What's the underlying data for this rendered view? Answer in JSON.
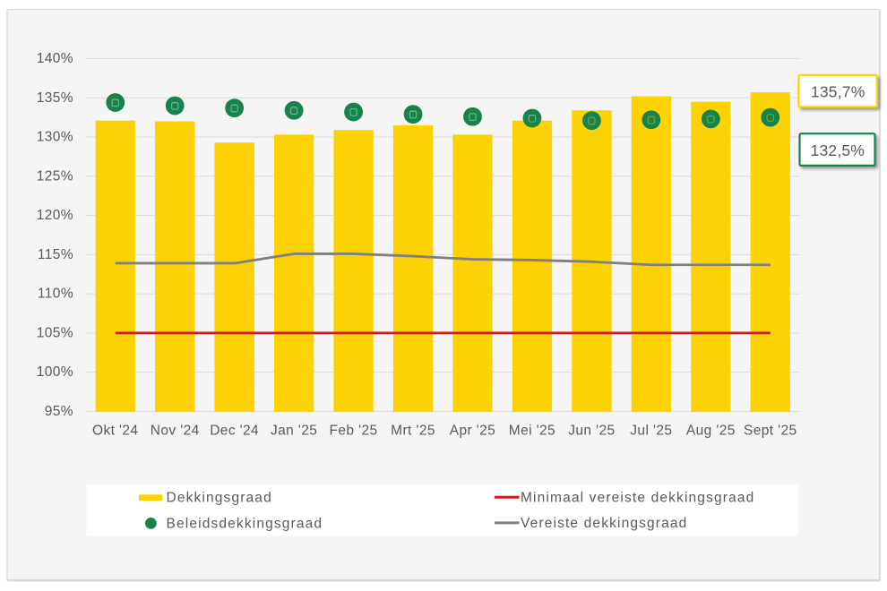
{
  "chart_data": {
    "type": "bar",
    "title": "",
    "xlabel": "",
    "ylabel": "",
    "categories": [
      "Okt '24",
      "Nov '24",
      "Dec '24",
      "Jan '25",
      "Feb '25",
      "Mrt '25",
      "Apr '25",
      "Mei '25",
      "Jun '25",
      "Jul '25",
      "Aug '25",
      "Sept '25"
    ],
    "series": [
      {
        "name": "Dekkingsgraad",
        "type": "bar",
        "color": "#FCD205",
        "values": [
          132.1,
          132.0,
          129.3,
          130.3,
          130.9,
          131.5,
          130.3,
          132.1,
          133.4,
          135.2,
          134.5,
          135.7
        ]
      },
      {
        "name": "Beleidsdekkingsgraad",
        "type": "scatter",
        "color": "#17834A",
        "values": [
          134.4,
          134.0,
          133.7,
          133.4,
          133.2,
          132.9,
          132.6,
          132.4,
          132.1,
          132.2,
          132.3,
          132.5
        ]
      },
      {
        "name": "Minimaal vereiste dekkingsgraad",
        "type": "line",
        "color": "#C51D23",
        "values": [
          105,
          105,
          105,
          105,
          105,
          105,
          105,
          105,
          105,
          105,
          105,
          105
        ]
      },
      {
        "name": "Vereiste dekkingsgraad",
        "type": "line",
        "color": "#808080",
        "values": [
          113.9,
          113.9,
          113.9,
          115.1,
          115.1,
          114.8,
          114.4,
          114.3,
          114.1,
          113.7,
          113.7,
          113.7
        ]
      }
    ],
    "ylim": [
      95,
      140
    ],
    "ytick_step": 5,
    "ytick_labels": [
      "95%",
      "100%",
      "105%",
      "110%",
      "115%",
      "120%",
      "125%",
      "130%",
      "135%",
      "140%"
    ],
    "grid": true,
    "legend_position": "bottom"
  },
  "legend": {
    "items": [
      {
        "label": "Dekkingsgraad",
        "swatch": "bar-swatch"
      },
      {
        "label": "Beleidsdekkingsgraad",
        "swatch": "dot-swatch"
      },
      {
        "label": "Minimaal vereiste dekkingsgraad",
        "swatch": "line-swatch"
      },
      {
        "label": "Vereiste dekkingsgraad",
        "swatch": "line-swatch"
      }
    ]
  },
  "callouts": [
    {
      "series": "Dekkingsgraad",
      "value_label": "135,7%"
    },
    {
      "series": "Beleidsdekkingsgraad",
      "value_label": "132,5%"
    }
  ],
  "colors": {
    "bar": "#FCD205",
    "dot": "#17834A",
    "min_required_line": "#C51D23",
    "required_line": "#808080",
    "text": "#595959",
    "gridline": "#DBDBDB",
    "chart_background": "#F5F5F5",
    "frame_border": "#D8D8D8",
    "legend_background": "#FFFFFF",
    "callout_background": "#FFFFFF"
  }
}
